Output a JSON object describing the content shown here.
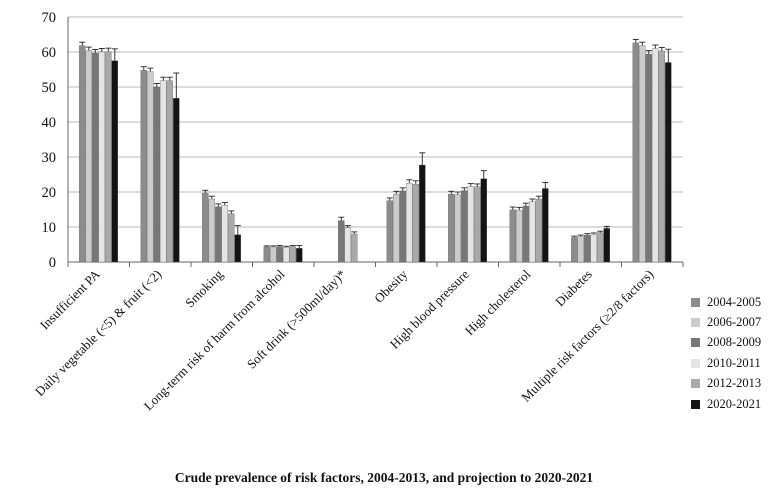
{
  "chart_data": {
    "type": "bar",
    "title": "Crude prevalence of risk factors, 2004-2013, and projection to 2020-2021",
    "xlabel": "",
    "ylabel": "",
    "ylim": [
      0,
      70
    ],
    "yticks": [
      "0",
      "10",
      "20",
      "30",
      "40",
      "50",
      "60",
      "70"
    ],
    "grid": true,
    "legend_position": "right",
    "error_bars": true,
    "categories": [
      "Insufficient PA",
      "Daily vegetable (<5) & fruit (<2)",
      "Smoking",
      "Long-term risk of harm from alcohol",
      "Soft drink (>500ml/day)*",
      "Obesity",
      "High blood pressure",
      "High cholesterol",
      "Diabetes",
      "Multiple risk factors (≥2/8 factors)"
    ],
    "series": [
      {
        "name": "2004-2005",
        "color": "#8c8c8c",
        "values": [
          61.8,
          54.8,
          19.7,
          4.3,
          null,
          17.5,
          19.4,
          14.9,
          7.0,
          62.6
        ],
        "errors": [
          1.0,
          1.0,
          0.8,
          0.3,
          null,
          0.8,
          0.8,
          0.8,
          0.4,
          1.0
        ]
      },
      {
        "name": "2006-2007",
        "color": "#cbcbcb",
        "values": [
          60.4,
          54.4,
          18.0,
          4.3,
          null,
          19.4,
          19.2,
          14.8,
          7.3,
          61.8
        ],
        "errors": [
          1.0,
          1.0,
          0.8,
          0.3,
          null,
          0.8,
          0.8,
          0.8,
          0.4,
          1.0
        ]
      },
      {
        "name": "2008-2009",
        "color": "#777777",
        "values": [
          59.7,
          50.0,
          15.8,
          4.4,
          11.8,
          20.3,
          20.4,
          16.0,
          7.7,
          59.4
        ],
        "errors": [
          1.0,
          1.0,
          0.8,
          0.3,
          1.0,
          0.9,
          0.8,
          0.8,
          0.4,
          1.0
        ]
      },
      {
        "name": "2010-2011",
        "color": "#e4e4e4",
        "values": [
          60.0,
          51.8,
          16.2,
          4.2,
          9.8,
          22.5,
          21.6,
          17.2,
          7.9,
          61.0
        ],
        "errors": [
          1.0,
          1.0,
          0.8,
          0.3,
          0.6,
          1.0,
          0.8,
          0.8,
          0.4,
          1.0
        ]
      },
      {
        "name": "2012-2013",
        "color": "#a9a9a9",
        "values": [
          60.1,
          51.8,
          13.8,
          4.4,
          8.0,
          22.2,
          21.5,
          18.0,
          8.4,
          60.3
        ],
        "errors": [
          1.0,
          1.0,
          0.8,
          0.3,
          0.6,
          1.0,
          0.8,
          0.8,
          0.4,
          1.0
        ]
      },
      {
        "name": "2020-2021",
        "color": "#141414",
        "values": [
          57.5,
          46.8,
          7.8,
          3.9,
          null,
          27.7,
          23.8,
          21.0,
          9.6,
          57.0
        ],
        "errors": [
          3.4,
          7.2,
          2.6,
          0.8,
          null,
          3.5,
          2.3,
          1.7,
          0.6,
          3.8
        ]
      }
    ]
  }
}
